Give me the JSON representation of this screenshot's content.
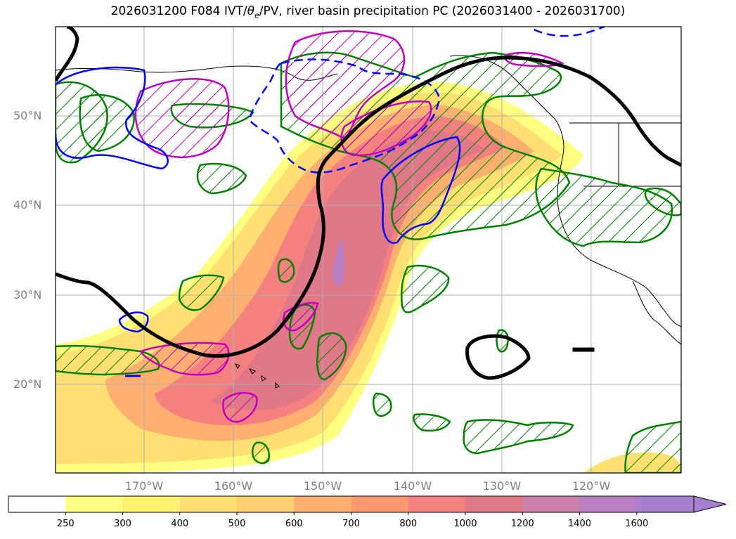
{
  "title": {
    "prefix": "2026031200 F084 IVT/",
    "theta": "θ",
    "theta_sub": "e",
    "suffix": "/PV, river basin precipitation PC (2026031400 - 2026031700)"
  },
  "map": {
    "lat_labels": [
      "50°N",
      "40°N",
      "30°N",
      "20°N"
    ],
    "lon_labels": [
      "170°W",
      "160°W",
      "150°W",
      "140°W",
      "130°W",
      "120°W"
    ],
    "colors": {
      "background": "#ffffff",
      "grid": "#b0b0b0",
      "contour_black": "#000000",
      "contour_blue": "#0000ff",
      "contour_magenta": "#bf00bf",
      "contour_green": "#008000",
      "coastline": "#000000"
    }
  },
  "colorbar": {
    "labels": [
      "250",
      "300",
      "400",
      "500",
      "600",
      "700",
      "800",
      "1000",
      "1200",
      "1400",
      "1600"
    ],
    "colors": [
      "#ffffff",
      "#ffff80",
      "#fff070",
      "#ffe070",
      "#ffd070",
      "#ffb070",
      "#ff9a70",
      "#f58080",
      "#e07888",
      "#cc80a8",
      "#b880c0",
      "#a880d0"
    ],
    "extend": "max"
  }
}
